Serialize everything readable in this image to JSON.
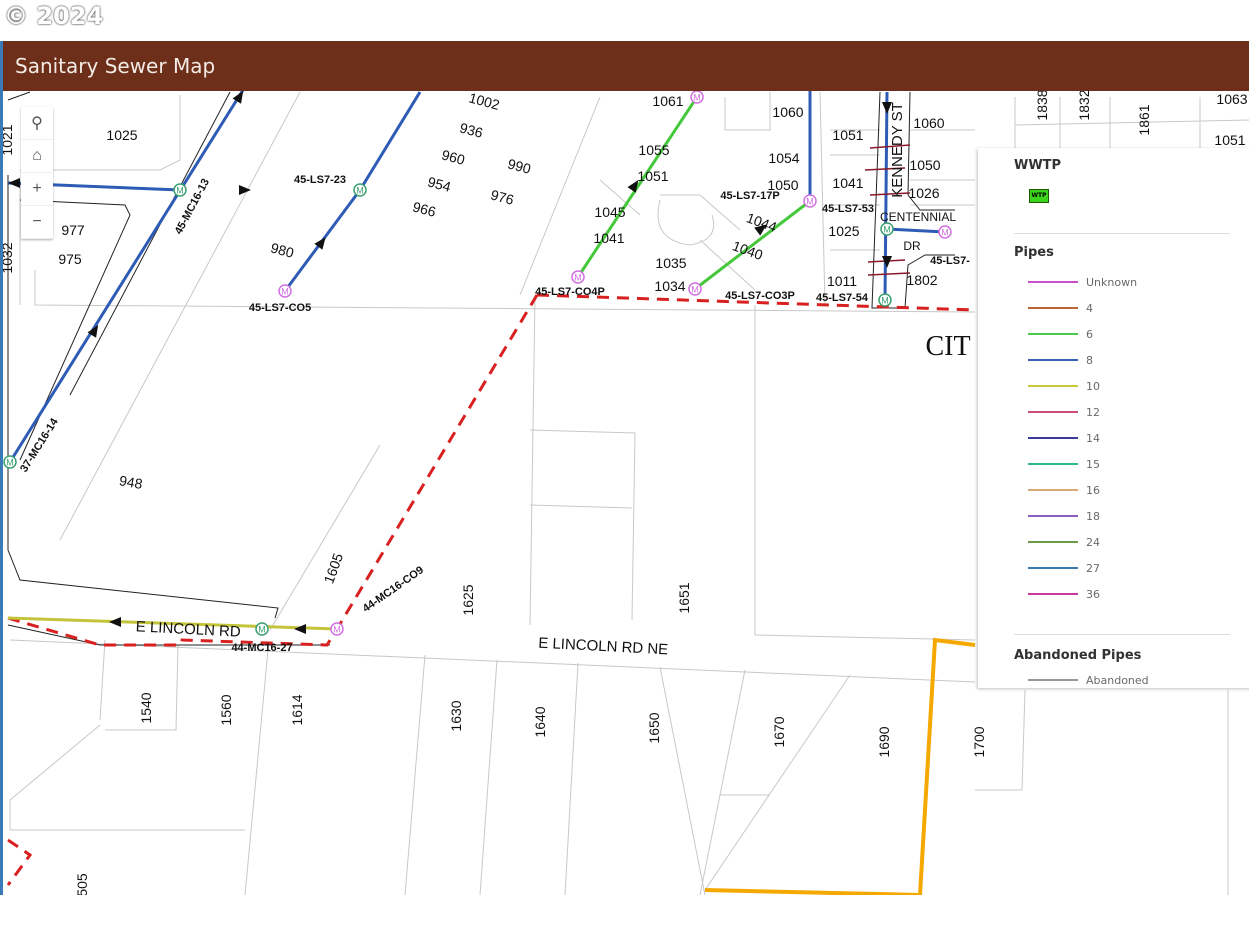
{
  "header": {
    "title": "Sanitary Sewer Map",
    "copyright": "© 2024"
  },
  "controls": {
    "search": "search-icon",
    "home": "home-icon",
    "zoom_in": "+",
    "zoom_out": "−"
  },
  "legend": {
    "wwtp_heading": "WWTP",
    "wwtp_symbol": "WTP",
    "pipes_heading": "Pipes",
    "pipes": [
      {
        "label": "Unknown",
        "color": "#c84fc8"
      },
      {
        "label": "4",
        "color": "#b8653a"
      },
      {
        "label": "6",
        "color": "#4cc84c"
      },
      {
        "label": "8",
        "color": "#3a5fb8"
      },
      {
        "label": "10",
        "color": "#c8c83a"
      },
      {
        "label": "12",
        "color": "#c84f7a"
      },
      {
        "label": "14",
        "color": "#3a3a9a"
      },
      {
        "label": "15",
        "color": "#2fb88a"
      },
      {
        "label": "16",
        "color": "#d8a878"
      },
      {
        "label": "18",
        "color": "#8a5fc0"
      },
      {
        "label": "24",
        "color": "#6a9a4a"
      },
      {
        "label": "27",
        "color": "#3a7ab0"
      },
      {
        "label": "36",
        "color": "#c83a9a"
      }
    ],
    "abandoned_heading": "Abandoned Pipes",
    "abandoned_label": "Abandoned"
  },
  "map": {
    "parcels": [
      "1025",
      "977",
      "975",
      "1032",
      "1002",
      "936",
      "960",
      "990",
      "954",
      "976",
      "966",
      "980",
      "1061",
      "1060",
      "1055",
      "1051",
      "1054",
      "1050",
      "1045",
      "1041",
      "1044",
      "1040",
      "1035",
      "1034",
      "1051",
      "1041",
      "1025",
      "1011",
      "1060",
      "1050",
      "1026",
      "1802",
      "948",
      "1605",
      "1625",
      "1651",
      "1540",
      "1560",
      "1614",
      "1630",
      "1640",
      "1650",
      "1670",
      "1690",
      "1700",
      "505",
      "1838",
      "1832",
      "1861",
      "1051",
      "1021",
      "1063"
    ],
    "structures": [
      "45-LS7-23",
      "45-LS7-CO5",
      "45-MC16-13",
      "37-MC16-14",
      "45-LS7-CO4P",
      "45-LS7-17P",
      "45-LS7-CO3P",
      "45-LS7-53",
      "45-LS7-54",
      "44-MC16-CO9",
      "44-MC16-27",
      "45-LS7-"
    ],
    "streets": [
      "E LINCOLN RD",
      "E LINCOLN RD NE",
      "KENNEDY ST",
      "CENTENNIAL",
      "DR",
      "CIT"
    ],
    "colors": {
      "pipe8": "#2d5bb5",
      "pipe6": "#44c83a",
      "pipe10": "#c4c43a",
      "boundary": "#d92020",
      "orange": "#f5a800",
      "manhole_pink": "#d070e0",
      "manhole_green": "#3aa070"
    }
  }
}
